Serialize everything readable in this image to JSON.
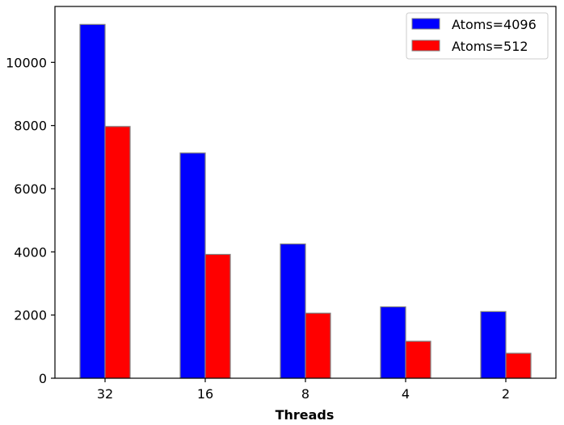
{
  "chart_data": {
    "type": "bar",
    "title": "",
    "xlabel": "Threads",
    "ylabel": "",
    "categories": [
      "32",
      "16",
      "8",
      "4",
      "2"
    ],
    "series": [
      {
        "name": "Atoms=4096",
        "color": "#0000ff",
        "values": [
          11200,
          7130,
          4250,
          2260,
          2110
        ]
      },
      {
        "name": "Atoms=512",
        "color": "#ff0000",
        "values": [
          7970,
          3920,
          2060,
          1170,
          790
        ]
      }
    ],
    "ylim": [
      0,
      11770
    ],
    "yticks": [
      0,
      2000,
      4000,
      6000,
      8000,
      10000
    ],
    "grid": false,
    "legend_position": "top-right",
    "bar_edge_color": "#808080"
  }
}
